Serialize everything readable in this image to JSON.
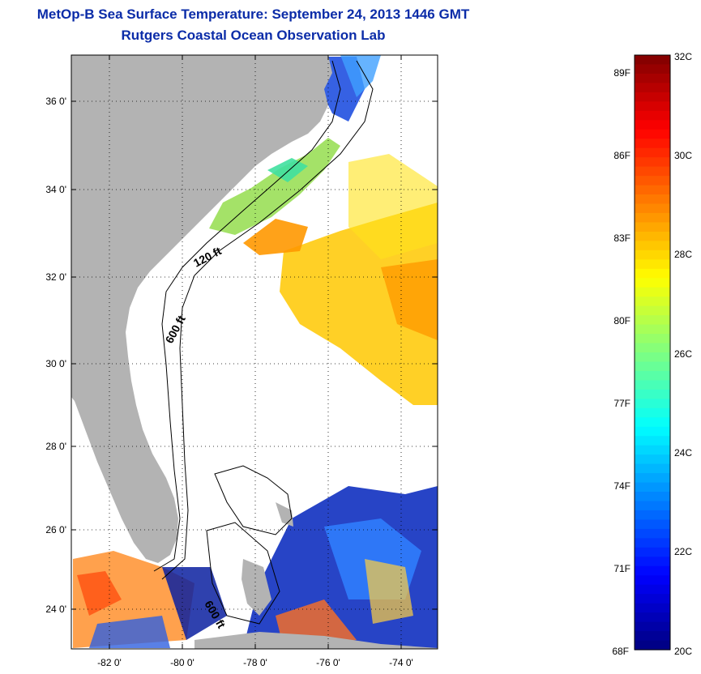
{
  "header": {
    "title": "MetOp-B Sea Surface Temperature:  September 24, 2013 1446 GMT",
    "subtitle": "Rutgers Coastal Ocean Observation Lab"
  },
  "map": {
    "lat_ticks": [
      "36 0'",
      "34 0'",
      "32 0'",
      "30 0'",
      "28 0'",
      "26 0'",
      "24 0'"
    ],
    "lon_ticks": [
      "-82 0'",
      "-80 0'",
      "-78 0'",
      "-76 0'",
      "-74 0'"
    ],
    "contour_labels": [
      "120 ft",
      "600 ft",
      "600 ft"
    ],
    "land_color": "#b3b3b3",
    "grid": "dotted"
  },
  "colorbar": {
    "fahrenheit_labels": [
      "89F",
      "86F",
      "83F",
      "80F",
      "77F",
      "74F",
      "71F",
      "68F"
    ],
    "celsius_labels": [
      "32C",
      "30C",
      "28C",
      "26C",
      "24C",
      "22C",
      "20C"
    ],
    "colormap": "jet",
    "range_c": [
      20,
      32
    ]
  }
}
